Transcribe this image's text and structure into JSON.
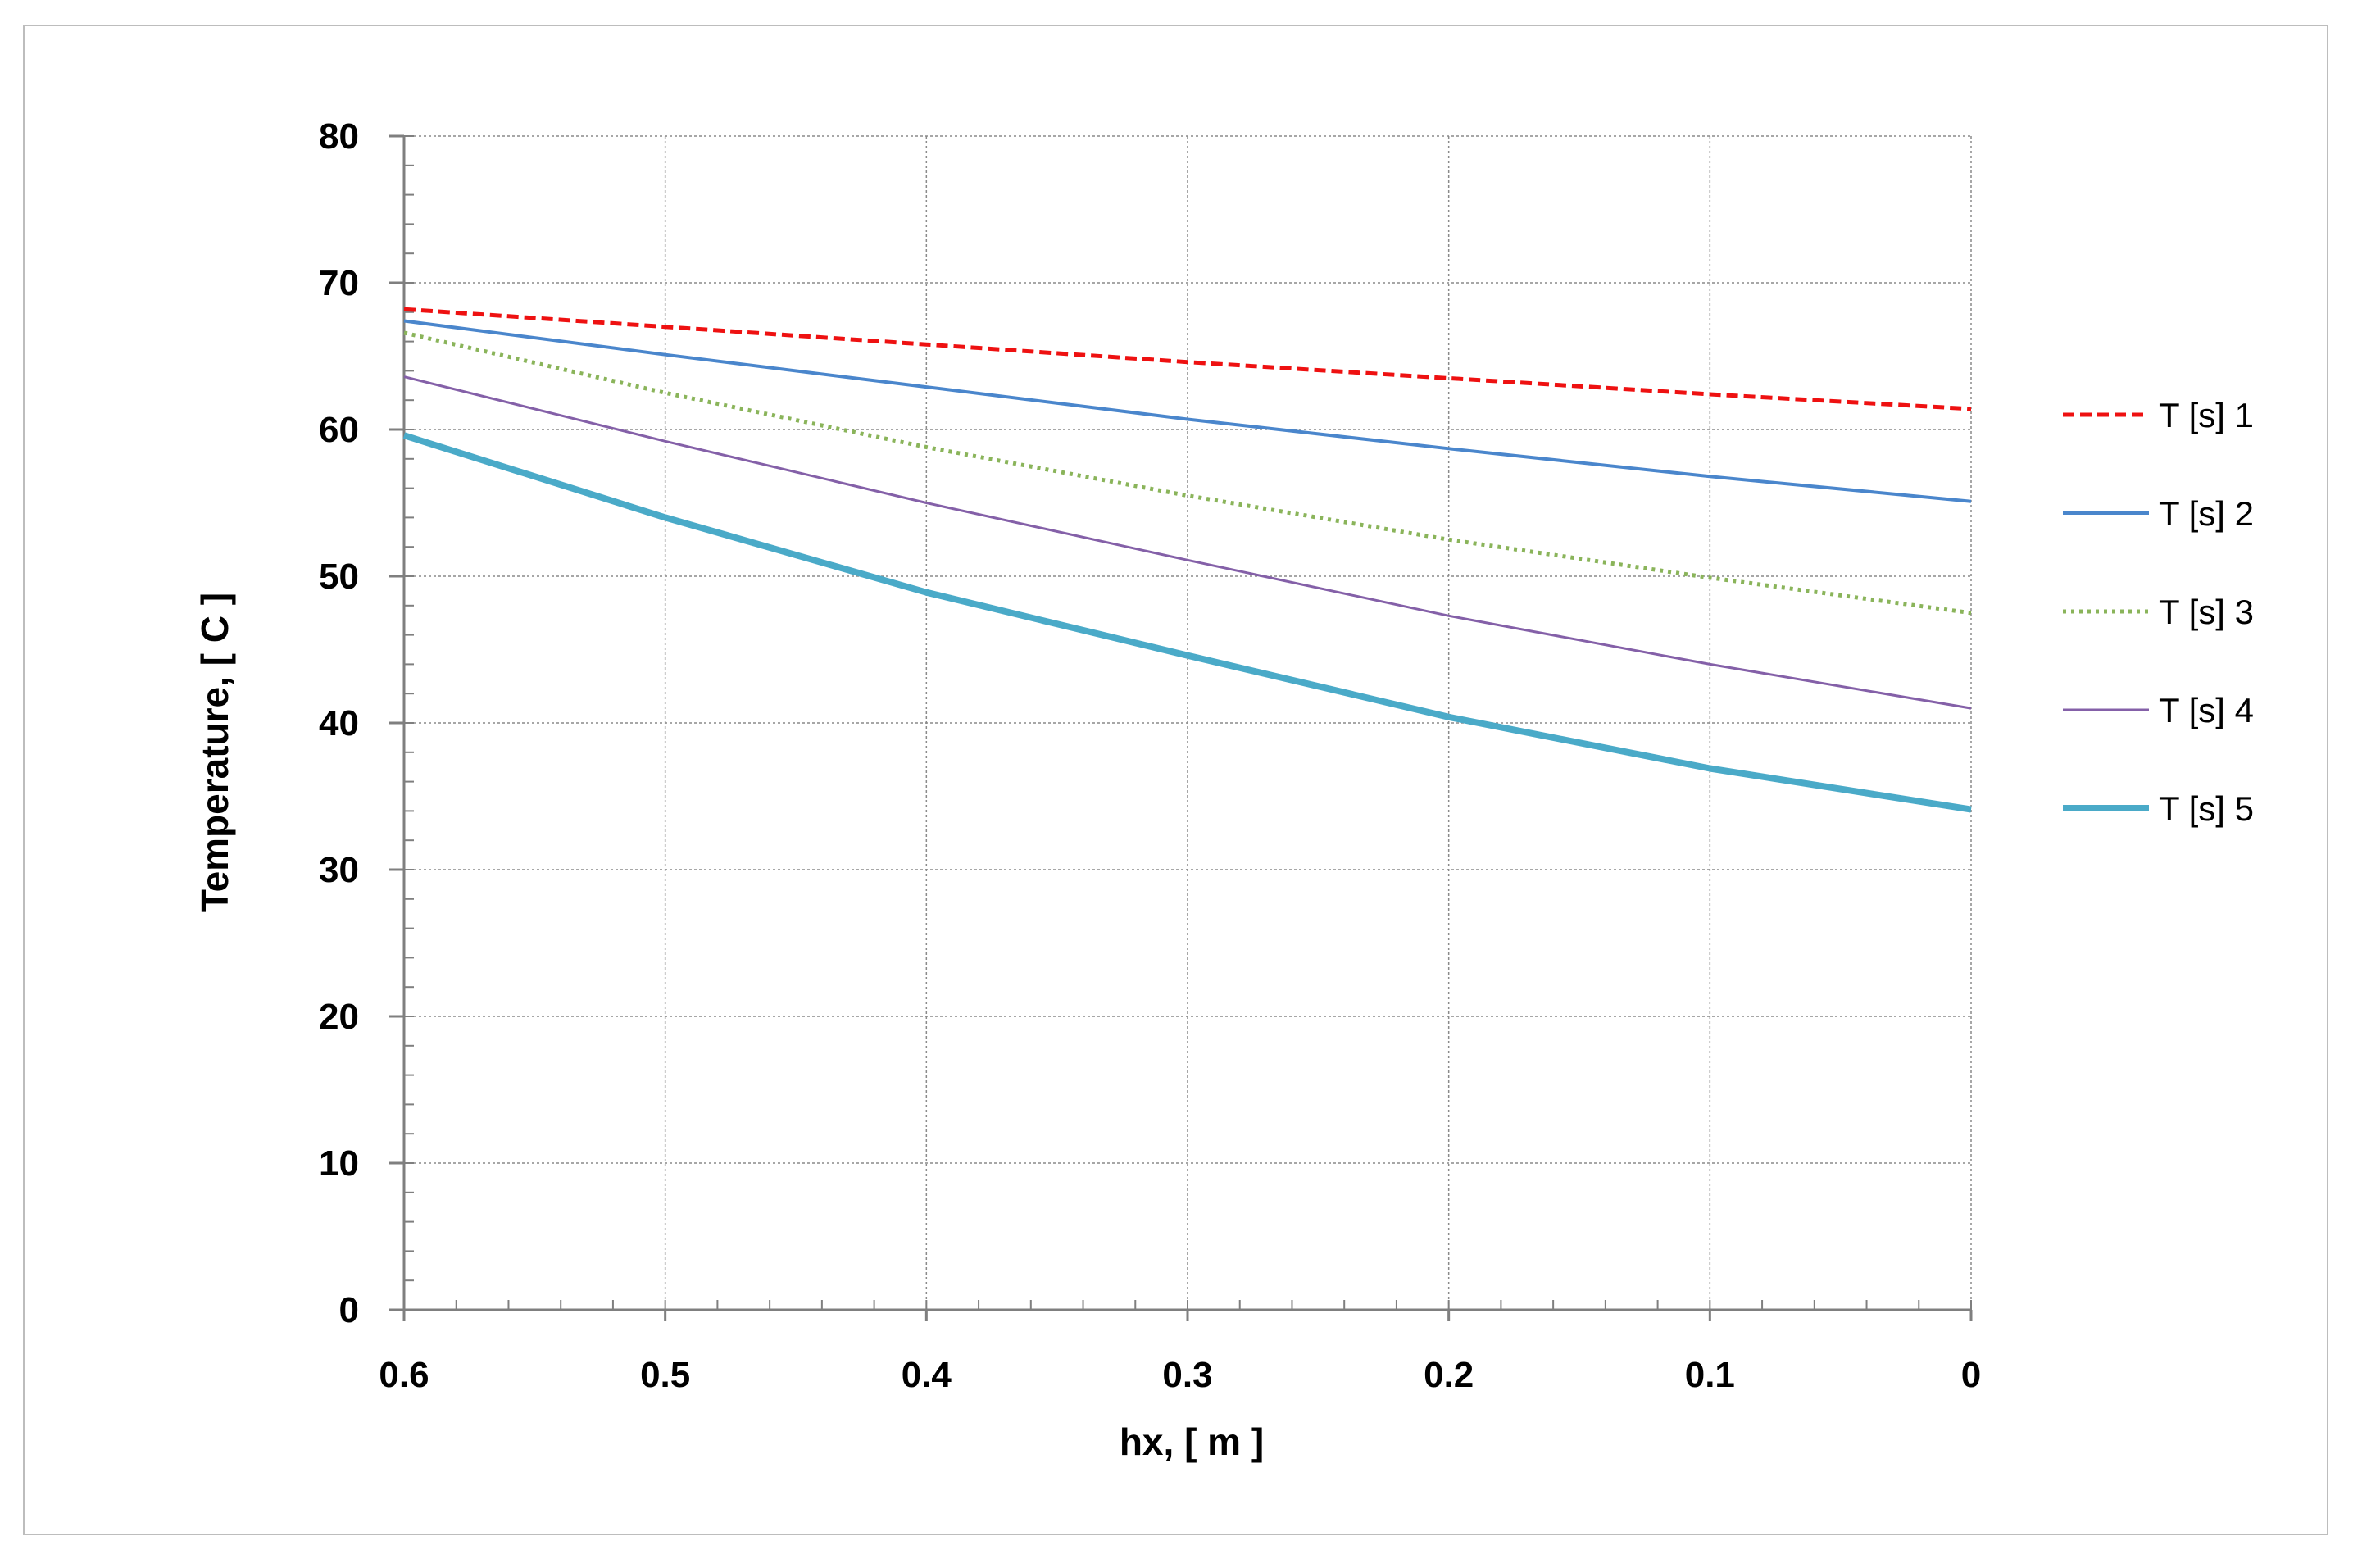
{
  "chart_data": {
    "type": "line",
    "title": "",
    "xlabel": "hx, [ m ]",
    "ylabel": "Temperature,  [ C ]",
    "xlim": [
      0.6,
      0
    ],
    "ylim": [
      0,
      80
    ],
    "x_ticks": [
      "0.6",
      "0.5",
      "0.4",
      "0.3",
      "0.2",
      "0.1",
      "0"
    ],
    "y_ticks": [
      "0",
      "10",
      "20",
      "30",
      "40",
      "50",
      "60",
      "70",
      "80"
    ],
    "grid": true,
    "legend_position": "right",
    "x": [
      0.6,
      0.5,
      0.4,
      0.3,
      0.2,
      0.1,
      0
    ],
    "series": [
      {
        "name": "T [s] 1",
        "values": [
          68.2,
          67.0,
          65.8,
          64.6,
          63.5,
          62.4,
          61.4
        ],
        "color": "#ee1111",
        "style": "dashed",
        "width": 5
      },
      {
        "name": "T [s] 2",
        "values": [
          67.4,
          65.1,
          62.9,
          60.7,
          58.7,
          56.8,
          55.1
        ],
        "color": "#4a86cc",
        "style": "solid",
        "width": 4
      },
      {
        "name": "T [s] 3",
        "values": [
          66.6,
          62.5,
          58.8,
          55.5,
          52.5,
          49.9,
          47.5
        ],
        "color": "#8ab45a",
        "style": "dotted",
        "width": 5
      },
      {
        "name": "T [s] 4",
        "values": [
          63.6,
          59.2,
          55.0,
          51.1,
          47.3,
          44.0,
          41.0
        ],
        "color": "#8460a8",
        "style": "solid",
        "width": 3
      },
      {
        "name": "T [s] 5",
        "values": [
          59.6,
          54.0,
          48.9,
          44.6,
          40.4,
          36.9,
          34.1
        ],
        "color": "#4aaac8",
        "style": "solid",
        "width": 8
      }
    ]
  }
}
